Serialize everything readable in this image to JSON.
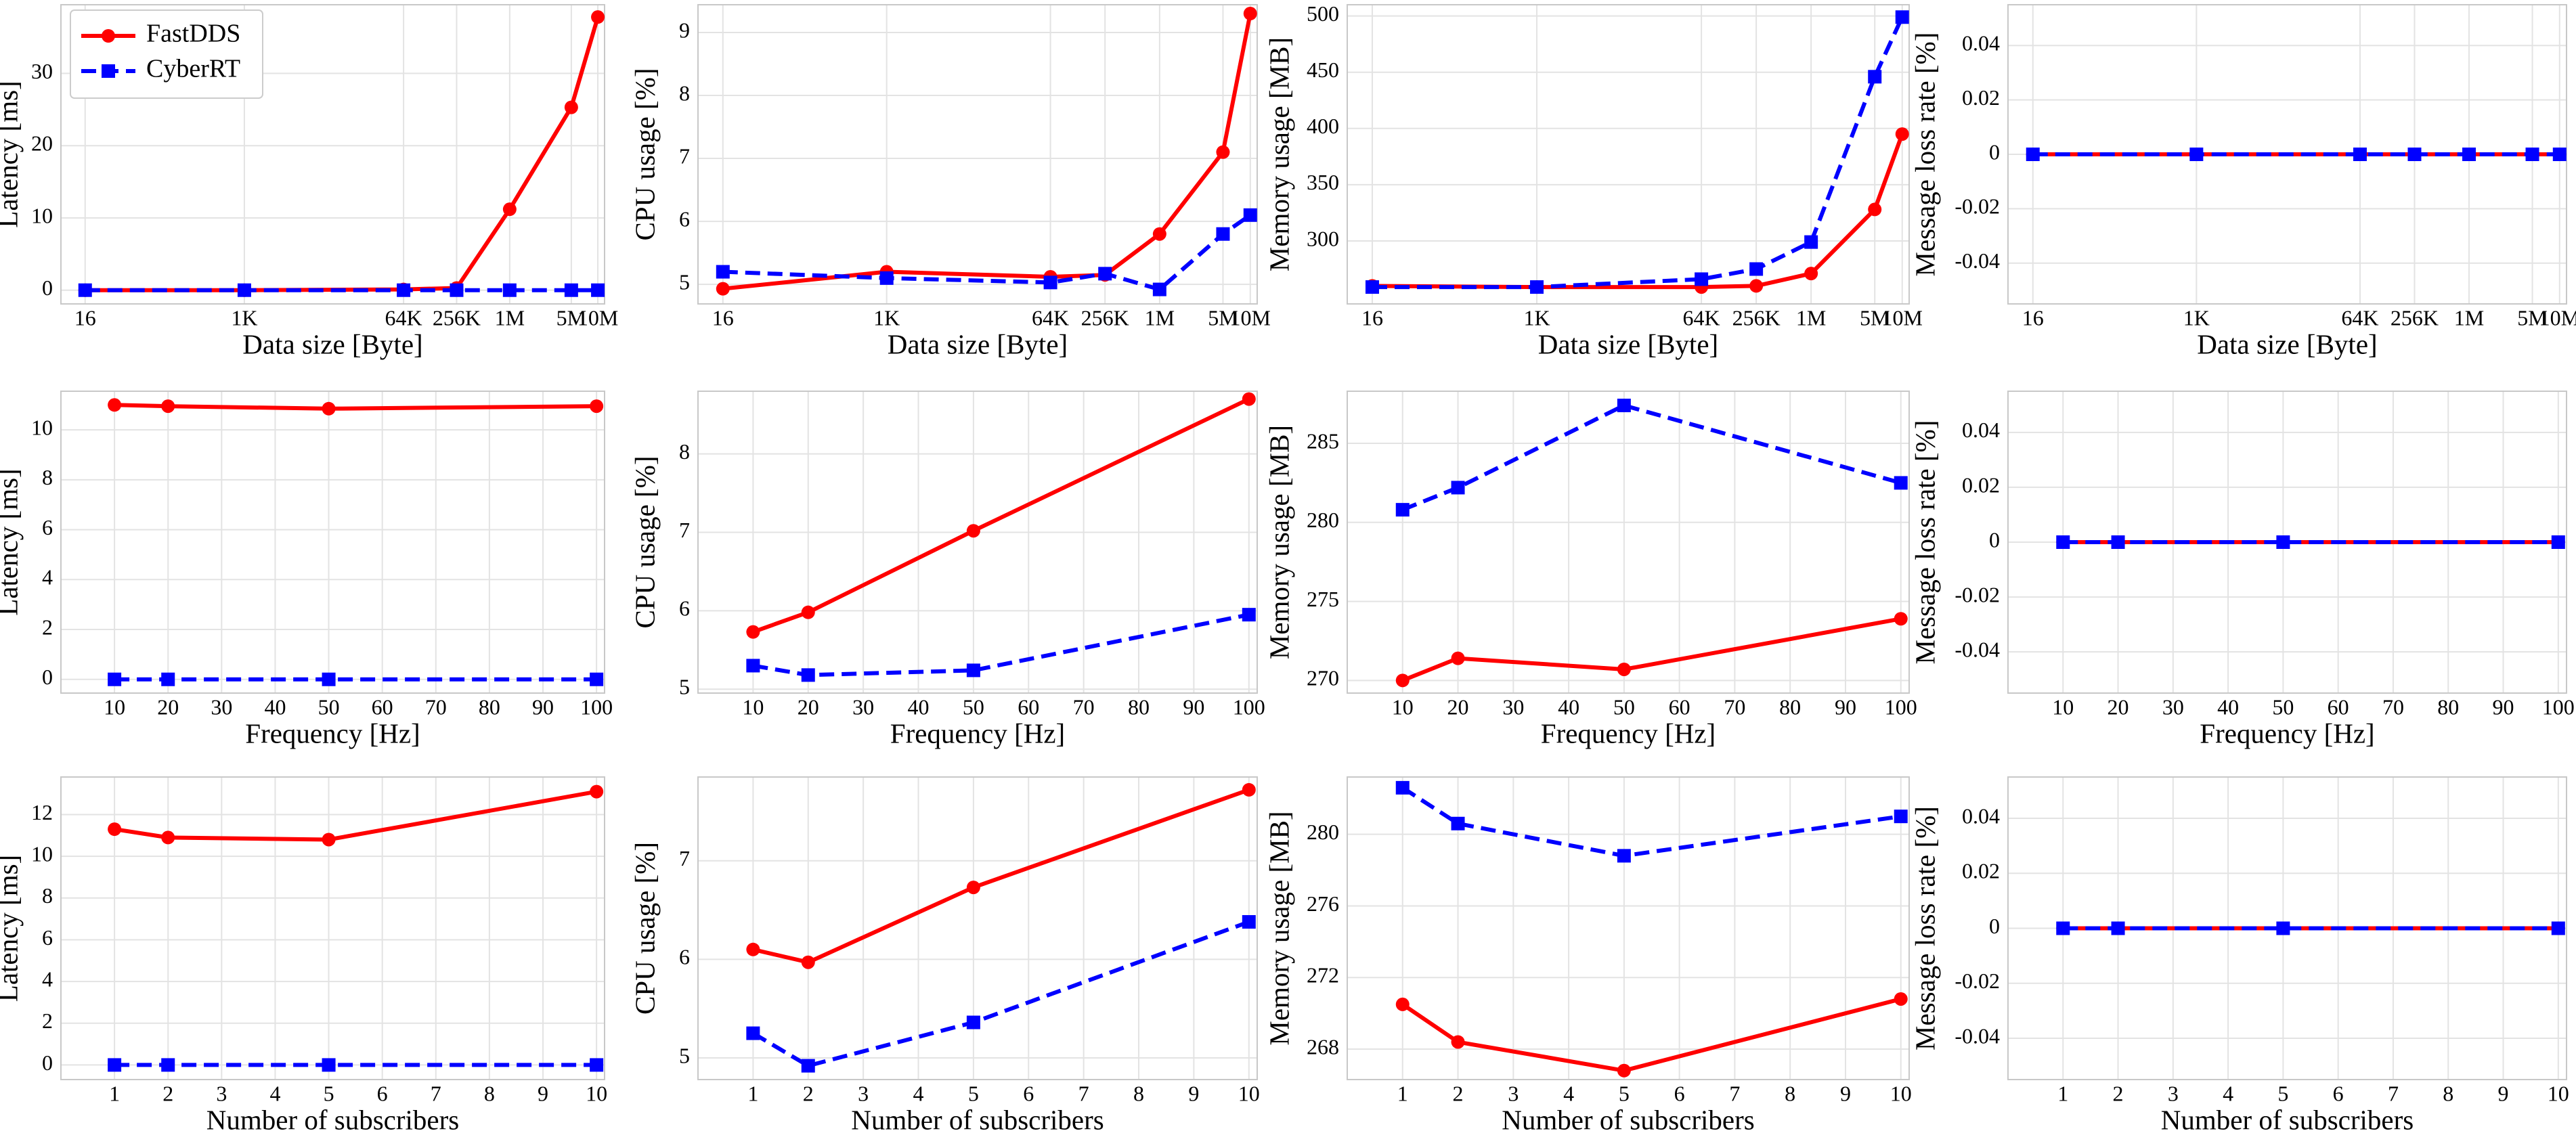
{
  "chart_data": [
    {
      "type": "line",
      "xscale": "log",
      "grid": true,
      "legend": "upper left",
      "xlabel": "Data size [Byte]",
      "ylabel": "Latency [ms]",
      "x": [
        16,
        1024,
        65536,
        262144,
        1048576,
        5242880,
        10485760
      ],
      "xlim": [
        8.5,
        12500000
      ],
      "xticks": [
        16,
        {
          "value": 1024,
          "label": "1K"
        },
        {
          "value": 65536,
          "label": "64K"
        },
        {
          "value": 262144,
          "label": "256K"
        },
        {
          "value": 1048576,
          "label": "1M"
        },
        {
          "value": 5242880,
          "label": "5M"
        },
        {
          "value": 10485760,
          "label": "10M"
        }
      ],
      "ylim": [
        -1.9,
        39.5
      ],
      "yticks": [
        0,
        10,
        20,
        30
      ],
      "series": [
        {
          "name": "FastDDS",
          "color": "#ff0000",
          "linestyle": "solid",
          "marker": "o",
          "values": [
            0,
            0,
            0.1,
            0.3,
            11.2,
            25.3,
            37.8
          ]
        },
        {
          "name": "CyberRT",
          "color": "#0000ff",
          "linestyle": "dashed",
          "marker": "s",
          "values": [
            0,
            0,
            0,
            0,
            0,
            0,
            0
          ]
        }
      ]
    },
    {
      "type": "line",
      "xscale": "log",
      "grid": true,
      "xlabel": "Data size [Byte]",
      "ylabel": "CPU usage [%]",
      "x": [
        16,
        1024,
        65536,
        262144,
        1048576,
        5242880,
        10485760
      ],
      "xlim": [
        8.5,
        12500000
      ],
      "xticks": [
        16,
        {
          "value": 1024,
          "label": "1K"
        },
        {
          "value": 65536,
          "label": "64K"
        },
        {
          "value": 262144,
          "label": "256K"
        },
        {
          "value": 1048576,
          "label": "1M"
        },
        {
          "value": 5242880,
          "label": "5M"
        },
        {
          "value": 10485760,
          "label": "10M"
        }
      ],
      "ylim": [
        4.69,
        9.44
      ],
      "yticks": [
        5,
        6,
        7,
        8,
        9
      ],
      "series": [
        {
          "color": "#ff0000",
          "linestyle": "solid",
          "marker": "o",
          "values": [
            4.93,
            5.2,
            5.12,
            5.15,
            5.8,
            7.1,
            9.3
          ]
        },
        {
          "color": "#0000ff",
          "linestyle": "dashed",
          "marker": "s",
          "values": [
            5.2,
            5.1,
            5.03,
            5.17,
            4.92,
            5.8,
            6.1
          ]
        }
      ]
    },
    {
      "type": "line",
      "xscale": "log",
      "grid": true,
      "xlabel": "Data size [Byte]",
      "ylabel": "Memory usage [MB]",
      "x": [
        16,
        1024,
        65536,
        262144,
        1048576,
        5242880,
        10485760
      ],
      "xlim": [
        8.5,
        12500000
      ],
      "xticks": [
        16,
        {
          "value": 1024,
          "label": "1K"
        },
        {
          "value": 65536,
          "label": "64K"
        },
        {
          "value": 262144,
          "label": "256K"
        },
        {
          "value": 1048576,
          "label": "1M"
        },
        {
          "value": 5242880,
          "label": "5M"
        },
        {
          "value": 10485760,
          "label": "10M"
        }
      ],
      "ylim": [
        244,
        510
      ],
      "yticks": [
        300,
        350,
        400,
        450,
        500
      ],
      "series": [
        {
          "color": "#ff0000",
          "linestyle": "solid",
          "marker": "o",
          "values": [
            260,
            259,
            259,
            260,
            271,
            328,
            395
          ]
        },
        {
          "color": "#0000ff",
          "linestyle": "dashed",
          "marker": "s",
          "values": [
            259,
            259,
            266,
            275,
            299,
            446,
            499
          ]
        }
      ]
    },
    {
      "type": "line",
      "xscale": "log",
      "grid": true,
      "xlabel": "Data size [Byte]",
      "ylabel": "Message loss rate [%]",
      "x": [
        16,
        1024,
        65536,
        262144,
        1048576,
        5242880,
        10485760
      ],
      "xlim": [
        8.5,
        12500000
      ],
      "xticks": [
        16,
        {
          "value": 1024,
          "label": "1K"
        },
        {
          "value": 65536,
          "label": "64K"
        },
        {
          "value": 262144,
          "label": "256K"
        },
        {
          "value": 1048576,
          "label": "1M"
        },
        {
          "value": 5242880,
          "label": "5M"
        },
        {
          "value": 10485760,
          "label": "10M"
        }
      ],
      "ylim": [
        -0.055,
        0.055
      ],
      "yticks": [
        -0.04,
        -0.02,
        0,
        0.02,
        0.04
      ],
      "series": [
        {
          "color": "#ff0000",
          "linestyle": "solid",
          "marker": "o",
          "values": [
            0,
            0,
            0,
            0,
            0,
            0,
            0
          ]
        },
        {
          "color": "#0000ff",
          "linestyle": "dashed",
          "marker": "s",
          "values": [
            0,
            0,
            0,
            0,
            0,
            0,
            0
          ]
        }
      ]
    },
    {
      "type": "line",
      "grid": true,
      "xlabel": "Frequency [Hz]",
      "ylabel": "Latency [ms]",
      "x": [
        10,
        20,
        50,
        100
      ],
      "xlim": [
        0,
        101.5
      ],
      "xticks": [
        10,
        20,
        30,
        40,
        50,
        60,
        70,
        80,
        90,
        100
      ],
      "ylim": [
        -0.55,
        11.55
      ],
      "yticks": [
        0,
        2,
        4,
        6,
        8,
        10
      ],
      "series": [
        {
          "color": "#ff0000",
          "linestyle": "solid",
          "marker": "o",
          "values": [
            11.0,
            10.95,
            10.85,
            10.95
          ]
        },
        {
          "color": "#0000ff",
          "linestyle": "dashed",
          "marker": "s",
          "values": [
            0,
            0,
            0,
            0
          ]
        }
      ]
    },
    {
      "type": "line",
      "grid": true,
      "xlabel": "Frequency [Hz]",
      "ylabel": "CPU usage [%]",
      "x": [
        10,
        20,
        50,
        100
      ],
      "xlim": [
        0,
        101.5
      ],
      "xticks": [
        10,
        20,
        30,
        40,
        50,
        60,
        70,
        80,
        90,
        100
      ],
      "ylim": [
        4.95,
        8.8
      ],
      "yticks": [
        5,
        6,
        7,
        8
      ],
      "series": [
        {
          "color": "#ff0000",
          "linestyle": "solid",
          "marker": "o",
          "values": [
            5.73,
            5.98,
            7.02,
            8.7
          ]
        },
        {
          "color": "#0000ff",
          "linestyle": "dashed",
          "marker": "s",
          "values": [
            5.3,
            5.18,
            5.24,
            5.95
          ]
        }
      ]
    },
    {
      "type": "line",
      "grid": true,
      "xlabel": "Frequency [Hz]",
      "ylabel": "Memory usage [MB]",
      "x": [
        10,
        20,
        50,
        100
      ],
      "xlim": [
        0,
        101.5
      ],
      "xticks": [
        10,
        20,
        30,
        40,
        50,
        60,
        70,
        80,
        90,
        100
      ],
      "ylim": [
        269.2,
        288.3
      ],
      "yticks": [
        270,
        275,
        280,
        285
      ],
      "series": [
        {
          "color": "#ff0000",
          "linestyle": "solid",
          "marker": "o",
          "values": [
            270.0,
            271.4,
            270.7,
            273.9
          ]
        },
        {
          "color": "#0000ff",
          "linestyle": "dashed",
          "marker": "s",
          "values": [
            280.8,
            282.2,
            287.4,
            282.5
          ]
        }
      ]
    },
    {
      "type": "line",
      "grid": true,
      "xlabel": "Frequency [Hz]",
      "ylabel": "Message loss rate [%]",
      "x": [
        10,
        20,
        50,
        100
      ],
      "xlim": [
        0,
        101.5
      ],
      "xticks": [
        10,
        20,
        30,
        40,
        50,
        60,
        70,
        80,
        90,
        100
      ],
      "ylim": [
        -0.055,
        0.055
      ],
      "yticks": [
        -0.04,
        -0.02,
        0,
        0.02,
        0.04
      ],
      "series": [
        {
          "color": "#ff0000",
          "linestyle": "solid",
          "marker": "o",
          "values": [
            0,
            0,
            0,
            0
          ]
        },
        {
          "color": "#0000ff",
          "linestyle": "dashed",
          "marker": "s",
          "values": [
            0,
            0,
            0,
            0
          ]
        }
      ]
    },
    {
      "type": "line",
      "grid": true,
      "xlabel": "Number of subscribers",
      "ylabel": "Latency [ms]",
      "x": [
        1,
        2,
        5,
        10
      ],
      "xlim": [
        0,
        10.15
      ],
      "xticks": [
        1,
        2,
        3,
        4,
        5,
        6,
        7,
        8,
        9,
        10
      ],
      "ylim": [
        -0.7,
        13.8
      ],
      "yticks": [
        0,
        2,
        4,
        6,
        8,
        10,
        12
      ],
      "series": [
        {
          "color": "#ff0000",
          "linestyle": "solid",
          "marker": "o",
          "values": [
            11.3,
            10.9,
            10.8,
            13.1
          ]
        },
        {
          "color": "#0000ff",
          "linestyle": "dashed",
          "marker": "s",
          "values": [
            0,
            0,
            0,
            0
          ]
        }
      ]
    },
    {
      "type": "line",
      "grid": true,
      "xlabel": "Number of subscribers",
      "ylabel": "CPU usage [%]",
      "x": [
        1,
        2,
        5,
        10
      ],
      "xlim": [
        0,
        10.15
      ],
      "xticks": [
        1,
        2,
        3,
        4,
        5,
        6,
        7,
        8,
        9,
        10
      ],
      "ylim": [
        4.78,
        7.85
      ],
      "yticks": [
        5,
        6,
        7
      ],
      "series": [
        {
          "color": "#ff0000",
          "linestyle": "solid",
          "marker": "o",
          "values": [
            6.1,
            5.97,
            6.73,
            7.72
          ]
        },
        {
          "color": "#0000ff",
          "linestyle": "dashed",
          "marker": "s",
          "values": [
            5.25,
            4.92,
            5.36,
            6.38
          ]
        }
      ]
    },
    {
      "type": "line",
      "grid": true,
      "xlabel": "Number of subscribers",
      "ylabel": "Memory usage [MB]",
      "x": [
        1,
        2,
        5,
        10
      ],
      "xlim": [
        0,
        10.15
      ],
      "xticks": [
        1,
        2,
        3,
        4,
        5,
        6,
        7,
        8,
        9,
        10
      ],
      "ylim": [
        266.3,
        283.2
      ],
      "yticks": [
        268,
        272,
        276,
        280
      ],
      "series": [
        {
          "color": "#ff0000",
          "linestyle": "solid",
          "marker": "o",
          "values": [
            270.5,
            268.4,
            266.8,
            270.8
          ]
        },
        {
          "color": "#0000ff",
          "linestyle": "dashed",
          "marker": "s",
          "values": [
            282.6,
            280.6,
            278.8,
            281.0
          ]
        }
      ]
    },
    {
      "type": "line",
      "grid": true,
      "xlabel": "Number of subscribers",
      "ylabel": "Message loss rate [%]",
      "x": [
        1,
        2,
        5,
        10
      ],
      "xlim": [
        0,
        10.15
      ],
      "xticks": [
        1,
        2,
        3,
        4,
        5,
        6,
        7,
        8,
        9,
        10
      ],
      "ylim": [
        -0.055,
        0.055
      ],
      "yticks": [
        -0.04,
        -0.02,
        0,
        0.02,
        0.04
      ],
      "series": [
        {
          "color": "#ff0000",
          "linestyle": "solid",
          "marker": "o",
          "values": [
            0,
            0,
            0,
            0
          ]
        },
        {
          "color": "#0000ff",
          "linestyle": "dashed",
          "marker": "s",
          "values": [
            0,
            0,
            0,
            0
          ]
        }
      ]
    }
  ]
}
